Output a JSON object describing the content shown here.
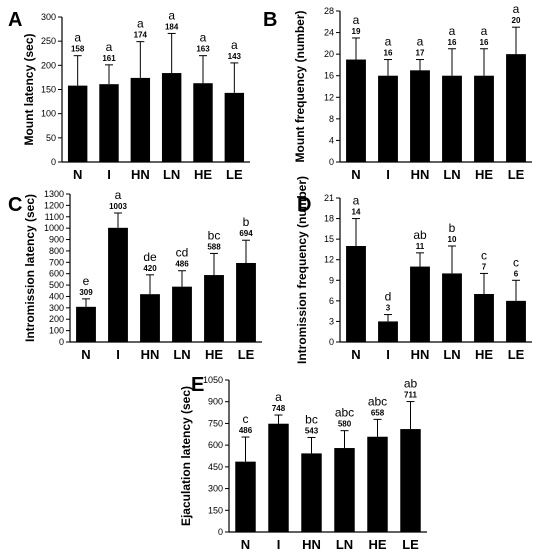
{
  "chart_data": [
    {
      "panel": "A",
      "type": "bar",
      "ylabel": "Mount latency (sec)",
      "categories": [
        "N",
        "I",
        "HN",
        "LN",
        "HE",
        "LE"
      ],
      "values": [
        158,
        161,
        174,
        184,
        163,
        143
      ],
      "errors": [
        62,
        40,
        75,
        82,
        57,
        62
      ],
      "value_labels": [
        "158",
        "161",
        "174",
        "184",
        "163",
        "143"
      ],
      "significance": [
        "a",
        "a",
        "a",
        "a",
        "a",
        "a"
      ],
      "ylim": [
        0,
        300
      ],
      "yticks": [
        0,
        50,
        100,
        150,
        200,
        250,
        300
      ]
    },
    {
      "panel": "B",
      "type": "bar",
      "ylabel": "Mount frequency (number)",
      "categories": [
        "N",
        "I",
        "HN",
        "LN",
        "HE",
        "LE"
      ],
      "values": [
        19,
        16,
        17,
        16,
        16,
        20
      ],
      "errors": [
        4,
        3,
        2,
        5,
        5,
        5
      ],
      "value_labels": [
        "19",
        "16",
        "17",
        "16",
        "16",
        "20"
      ],
      "significance": [
        "a",
        "a",
        "a",
        "a",
        "a",
        "a"
      ],
      "ylim": [
        0,
        28
      ],
      "yticks": [
        0,
        4,
        8,
        12,
        16,
        20,
        24,
        28
      ]
    },
    {
      "panel": "C",
      "type": "bar",
      "ylabel": "Intromission latency (sec)",
      "categories": [
        "N",
        "I",
        "HN",
        "LN",
        "HE",
        "LE"
      ],
      "values": [
        309,
        1003,
        420,
        486,
        588,
        694
      ],
      "errors": [
        70,
        130,
        170,
        140,
        190,
        200
      ],
      "value_labels": [
        "309",
        "1003",
        "420",
        "486",
        "588",
        "694"
      ],
      "significance": [
        "e",
        "a",
        "de",
        "cd",
        "bc",
        "b"
      ],
      "ylim": [
        0,
        1300
      ],
      "yticks": [
        0,
        100,
        200,
        300,
        400,
        500,
        600,
        700,
        800,
        900,
        1000,
        1100,
        1200,
        1300
      ]
    },
    {
      "panel": "D",
      "type": "bar",
      "ylabel": "Intromission frequency (number)",
      "categories": [
        "N",
        "I",
        "HN",
        "LN",
        "HE",
        "LE"
      ],
      "values": [
        14,
        3,
        11,
        10,
        7,
        6
      ],
      "errors": [
        4,
        1,
        2,
        4,
        3,
        3
      ],
      "value_labels": [
        "14",
        "3",
        "11",
        "10",
        "7",
        "6"
      ],
      "significance": [
        "a",
        "d",
        "ab",
        "b",
        "c",
        "c"
      ],
      "ylim": [
        0,
        21
      ],
      "yticks": [
        0,
        3,
        6,
        9,
        12,
        15,
        18,
        21
      ]
    },
    {
      "panel": "E",
      "type": "bar",
      "ylabel": "Ejaculation latency (sec)",
      "categories": [
        "N",
        "I",
        "HN",
        "LN",
        "HE",
        "LE"
      ],
      "values": [
        486,
        748,
        543,
        580,
        658,
        711
      ],
      "errors": [
        170,
        60,
        110,
        120,
        120,
        190
      ],
      "value_labels": [
        "486",
        "748",
        "543",
        "580",
        "658",
        "711"
      ],
      "significance": [
        "c",
        "a",
        "bc",
        "abc",
        "abc",
        "ab"
      ],
      "ylim": [
        0,
        1050
      ],
      "yticks": [
        0,
        150,
        300,
        450,
        600,
        750,
        900,
        1050
      ]
    }
  ]
}
